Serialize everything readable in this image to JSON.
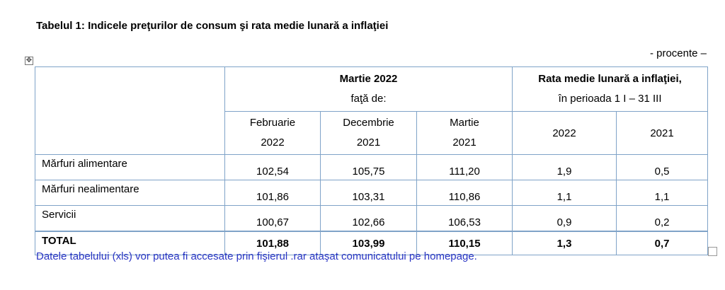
{
  "title": "Tabelul 1: Indicele preţurilor de consum şi rata medie lunară a inflaţiei",
  "unit": "- procente –",
  "anchor_icon": "move-anchor-icon",
  "table": {
    "group1": {
      "line1": "Martie 2022",
      "line2": "faţă de:"
    },
    "group2": {
      "line1": "Rata medie lunară a inflaţiei,",
      "line2": "în perioada 1 I – 31 III"
    },
    "columns": [
      {
        "line1": "Februarie",
        "line2": "2022"
      },
      {
        "line1": "Decembrie",
        "line2": "2021"
      },
      {
        "line1": "Martie",
        "line2": "2021"
      },
      {
        "line1": "2022"
      },
      {
        "line1": "2021"
      }
    ],
    "rows": [
      {
        "label": "Mărfuri alimentare",
        "values": [
          "102,54",
          "105,75",
          "111,20",
          "1,9",
          "0,5"
        ]
      },
      {
        "label": "Mărfuri nealimentare",
        "values": [
          "101,86",
          "103,31",
          "110,86",
          "1,1",
          "1,1"
        ]
      },
      {
        "label": "Servicii",
        "values": [
          "100,67",
          "102,66",
          "106,53",
          "0,9",
          "0,2"
        ]
      }
    ],
    "total": {
      "label": "TOTAL",
      "values": [
        "101,88",
        "103,99",
        "110,15",
        "1,3",
        "0,7"
      ]
    }
  },
  "footnote": "Datele tabelului (xls) vor putea fi accesate prin fişierul .rar ataşat comunicatului pe homepage.",
  "colors": {
    "border": "#7fa3c8",
    "footnote": "#2a35c4"
  }
}
